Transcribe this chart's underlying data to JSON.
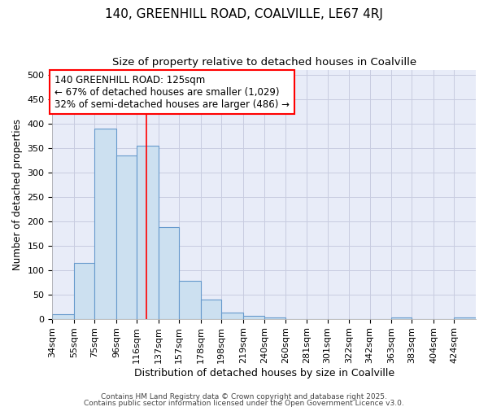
{
  "title": "140, GREENHILL ROAD, COALVILLE, LE67 4RJ",
  "subtitle": "Size of property relative to detached houses in Coalville",
  "xlabel": "Distribution of detached houses by size in Coalville",
  "ylabel": "Number of detached properties",
  "bin_edges": [
    34,
    55,
    75,
    96,
    116,
    137,
    157,
    178,
    198,
    219,
    240,
    260,
    281,
    301,
    322,
    342,
    363,
    383,
    404,
    424,
    445
  ],
  "bar_heights": [
    10,
    115,
    390,
    335,
    355,
    188,
    78,
    40,
    12,
    6,
    2,
    0,
    0,
    0,
    0,
    0,
    3,
    0,
    0,
    3
  ],
  "bar_color": "#cce0f0",
  "bar_edgecolor": "#6699cc",
  "bar_linewidth": 0.8,
  "redline_x": 125,
  "annotation_line1": "140 GREENHILL ROAD: 125sqm",
  "annotation_line2": "← 67% of detached houses are smaller (1,029)",
  "annotation_line3": "32% of semi-detached houses are larger (486) →",
  "annotation_box_color": "white",
  "annotation_box_edgecolor": "red",
  "annotation_fontsize": 8.5,
  "ylim": [
    0,
    510
  ],
  "yticks": [
    0,
    50,
    100,
    150,
    200,
    250,
    300,
    350,
    400,
    450,
    500
  ],
  "grid_color": "#c8cce0",
  "plot_bg_color": "#e8ecf8",
  "fig_bg_color": "#ffffff",
  "title_fontsize": 11,
  "subtitle_fontsize": 9.5,
  "xlabel_fontsize": 9,
  "ylabel_fontsize": 8.5,
  "tick_fontsize": 8,
  "footer_line1": "Contains HM Land Registry data © Crown copyright and database right 2025.",
  "footer_line2": "Contains public sector information licensed under the Open Government Licence v3.0.",
  "footer_fontsize": 6.5
}
